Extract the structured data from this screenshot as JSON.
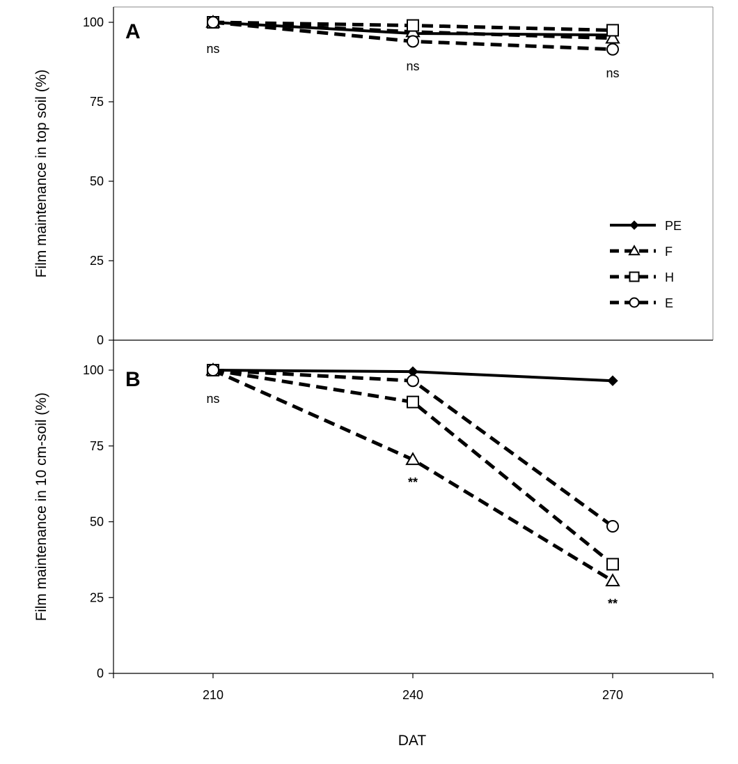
{
  "chart_data": [
    {
      "type": "line",
      "panel": "A",
      "xlabel": "DAT",
      "ylabel": "Film maintenance in top soil (%)",
      "x": [
        210,
        240,
        270
      ],
      "ylim": [
        0,
        100
      ],
      "yticks": [
        0,
        25,
        50,
        75,
        100
      ],
      "series": [
        {
          "name": "PE",
          "values": [
            100,
            96.5,
            96
          ],
          "marker": "diamond",
          "dash": "solid"
        },
        {
          "name": "F",
          "values": [
            100,
            97,
            95
          ],
          "marker": "triangle",
          "dash": "dashed"
        },
        {
          "name": "H",
          "values": [
            100,
            99,
            97.5
          ],
          "marker": "square",
          "dash": "dashed"
        },
        {
          "name": "E",
          "values": [
            100,
            94,
            91.5
          ],
          "marker": "circle",
          "dash": "dashed"
        }
      ],
      "annotations": [
        {
          "x": 210,
          "text": "ns"
        },
        {
          "x": 240,
          "text": "ns"
        },
        {
          "x": 270,
          "text": "ns"
        }
      ],
      "legend": "right"
    },
    {
      "type": "line",
      "panel": "B",
      "xlabel": "DAT",
      "ylabel": "Film maintenance in 10 cm-soil (%)",
      "x": [
        210,
        240,
        270
      ],
      "xticks": [
        210,
        240,
        270
      ],
      "ylim": [
        0,
        100
      ],
      "yticks": [
        0,
        25,
        50,
        75,
        100
      ],
      "series": [
        {
          "name": "PE",
          "values": [
            100,
            99.5,
            96.5
          ],
          "marker": "diamond",
          "dash": "solid"
        },
        {
          "name": "F",
          "values": [
            100,
            70.5,
            30.5
          ],
          "marker": "triangle",
          "dash": "dashed"
        },
        {
          "name": "H",
          "values": [
            100,
            89.5,
            36
          ],
          "marker": "square",
          "dash": "dashed"
        },
        {
          "name": "E",
          "values": [
            100,
            96.5,
            48.5
          ],
          "marker": "circle",
          "dash": "dashed"
        }
      ],
      "annotations": [
        {
          "x": 210,
          "text": "ns"
        },
        {
          "x": 240,
          "text": "**"
        },
        {
          "x": 270,
          "text": "**"
        }
      ]
    }
  ],
  "xaxis_title": "DAT"
}
